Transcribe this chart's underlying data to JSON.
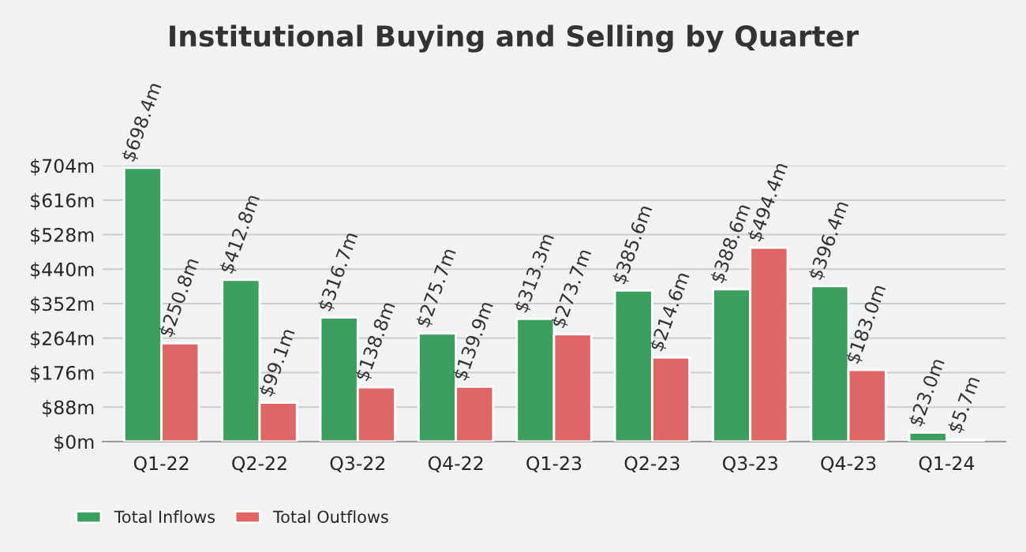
{
  "chart_data": {
    "type": "bar",
    "title": "Institutional Buying and Selling by Quarter",
    "categories": [
      "Q1-22",
      "Q2-22",
      "Q3-22",
      "Q4-22",
      "Q1-23",
      "Q2-23",
      "Q3-23",
      "Q4-23",
      "Q1-24"
    ],
    "series": [
      {
        "name": "Total Inflows",
        "color": "#3c9f5f",
        "values": [
          698.4,
          412.8,
          316.7,
          275.7,
          313.3,
          385.6,
          388.6,
          396.4,
          23.0
        ],
        "value_labels": [
          "$698.4m",
          "$412.8m",
          "$316.7m",
          "$275.7m",
          "$313.3m",
          "$385.6m",
          "$388.6m",
          "$396.4m",
          "$23.0m"
        ]
      },
      {
        "name": "Total Outflows",
        "color": "#e06666",
        "values": [
          250.8,
          99.1,
          138.8,
          139.9,
          273.7,
          214.6,
          494.4,
          183.0,
          5.7
        ],
        "value_labels": [
          "$250.8m",
          "$99.1m",
          "$138.8m",
          "$139.9m",
          "$273.7m",
          "$214.6m",
          "$494.4m",
          "$183.0m",
          "$5.7m"
        ]
      }
    ],
    "ylim": [
      0,
      704
    ],
    "yticks": [
      {
        "value": 0,
        "label": "$0m"
      },
      {
        "value": 88,
        "label": "$88m"
      },
      {
        "value": 176,
        "label": "$176m"
      },
      {
        "value": 264,
        "label": "$264m"
      },
      {
        "value": 352,
        "label": "$352m"
      },
      {
        "value": 440,
        "label": "$440m"
      },
      {
        "value": 528,
        "label": "$528m"
      },
      {
        "value": 616,
        "label": "$616m"
      },
      {
        "value": 704,
        "label": "$704m"
      }
    ],
    "grid": "y",
    "legend": "bottom left"
  }
}
